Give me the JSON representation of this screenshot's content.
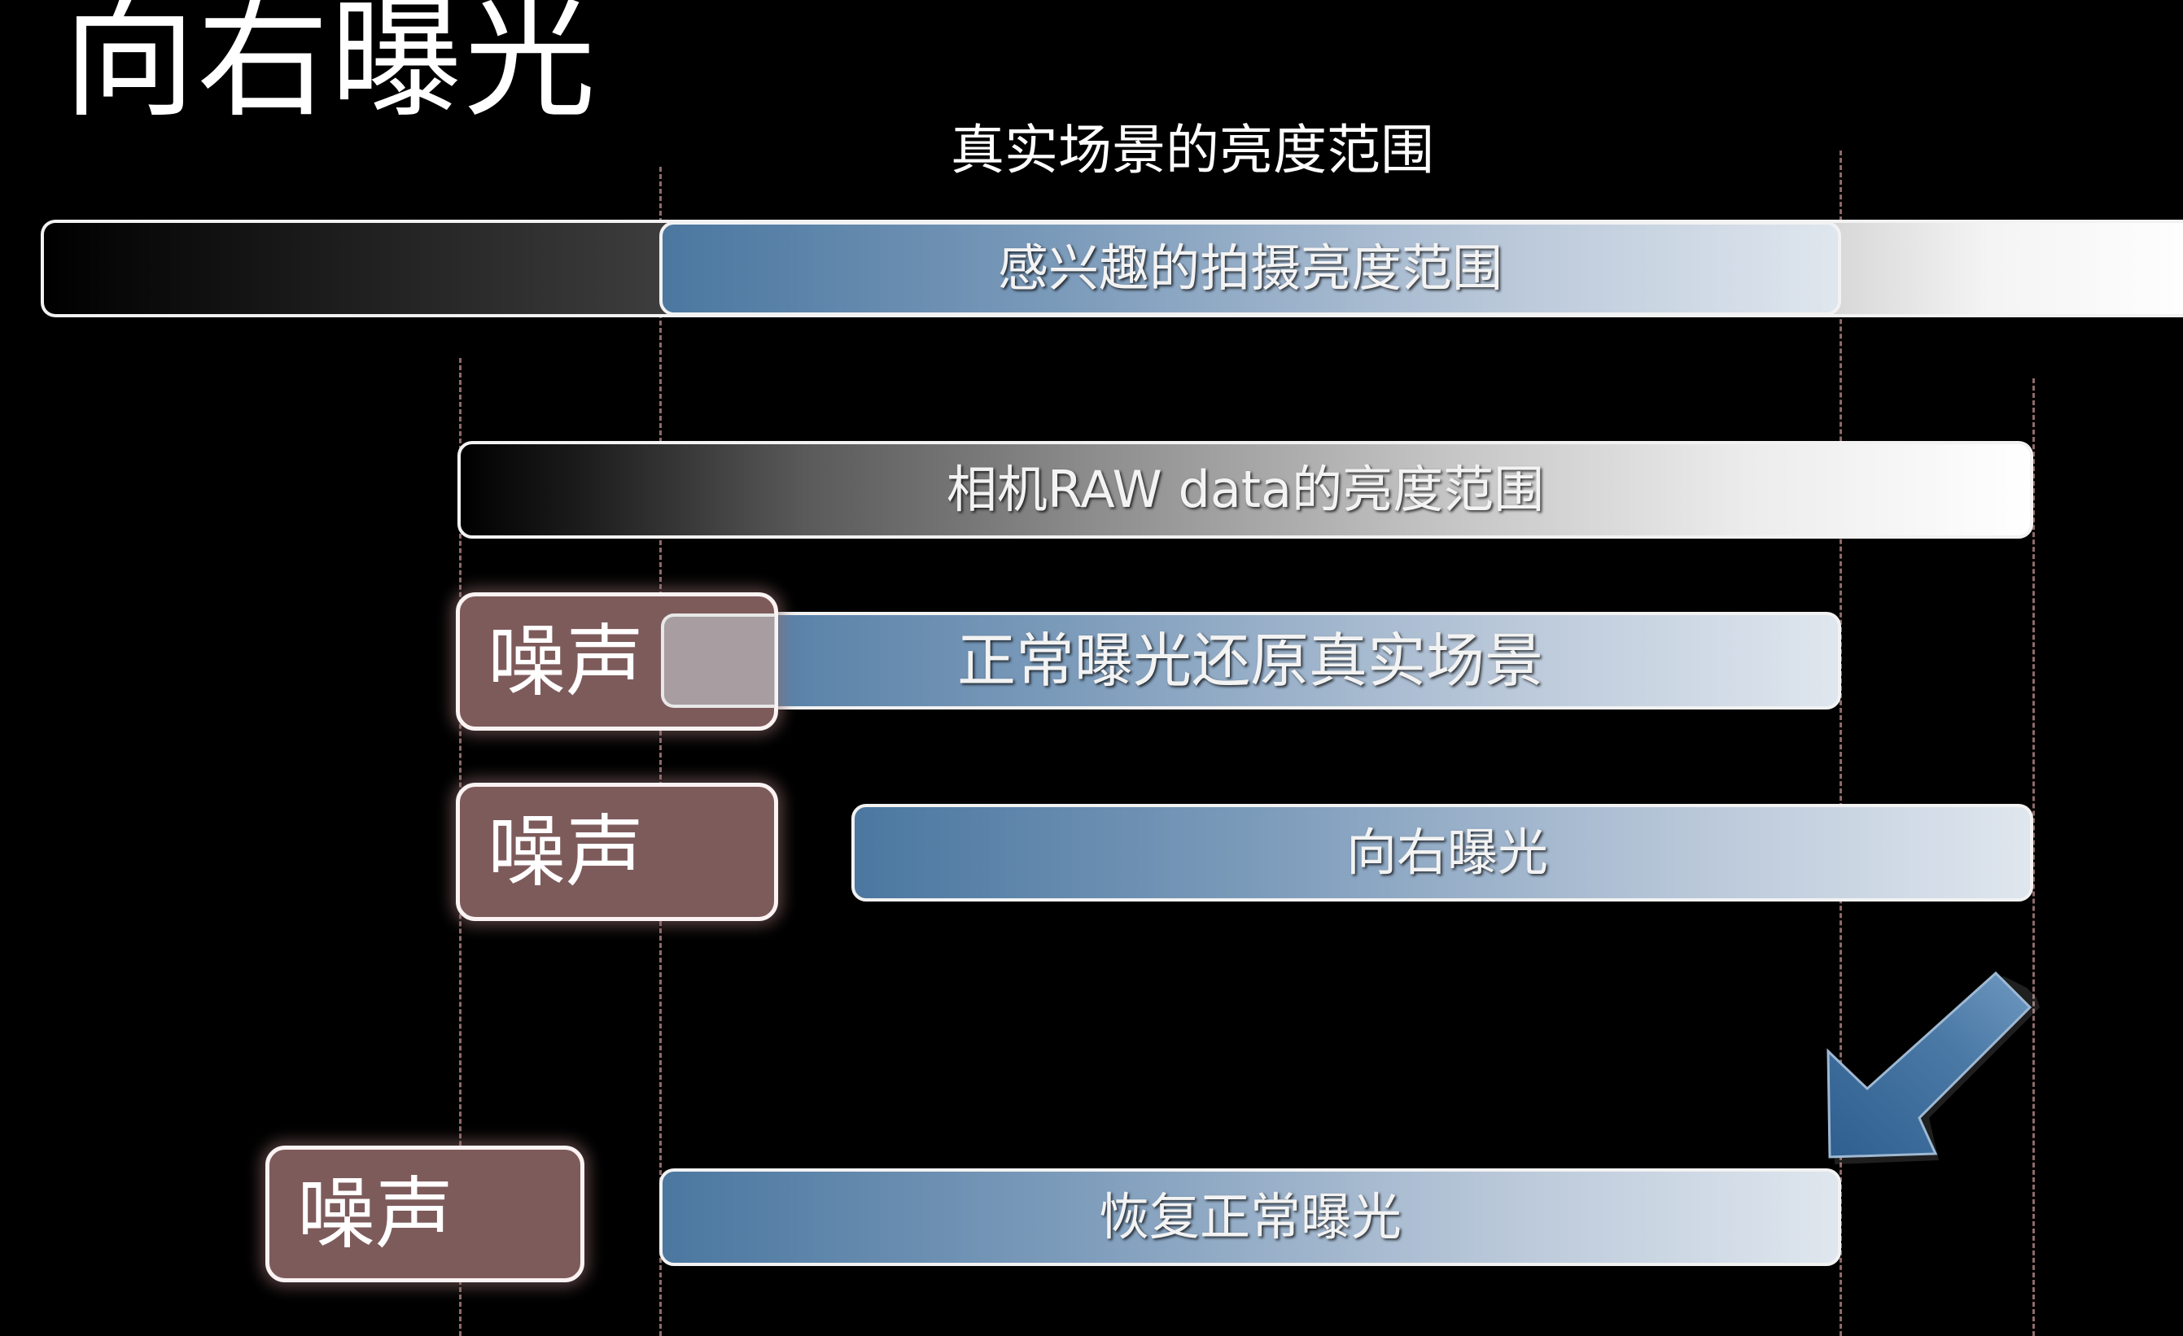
{
  "title": "向右曝光",
  "subtitle": "真实场景的亮度范围",
  "bars": {
    "scene_range": "感兴趣的拍摄亮度范围",
    "raw_range": "相机RAW data的亮度范围",
    "normal_exposure": "正常曝光还原真实场景",
    "expose_right": "向右曝光",
    "restore_normal": "恢复正常曝光"
  },
  "noise_labels": [
    "噪声",
    "噪声",
    "噪声"
  ],
  "colors": {
    "background": "#000000",
    "noise_fill": "#7e5b5b",
    "bar_blue_dark": "#4b77a0",
    "bar_blue_light": "#dfe6ee",
    "arrow_blue": "#4a79a6",
    "guide_line": "#8e6a6a"
  },
  "icons": {
    "arrow": "down-left-arrow-icon"
  }
}
